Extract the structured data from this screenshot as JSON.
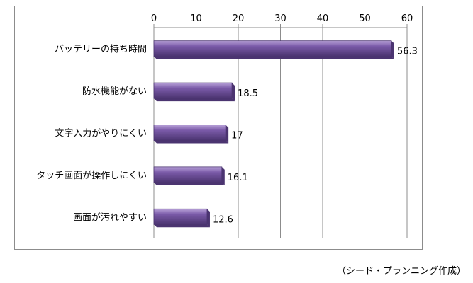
{
  "chart_data": {
    "type": "bar",
    "orientation": "horizontal",
    "categories": [
      "バッテリーの持ち時間",
      "防水機能がない",
      "文字入力がやりにくい",
      "タッチ画面が操作しにくい",
      "画面が汚れやすい"
    ],
    "values": [
      56.3,
      18.5,
      17,
      16.1,
      12.6
    ],
    "value_labels": [
      "56.3",
      "18.5",
      "17",
      "16.1",
      "12.6"
    ],
    "xlim": [
      0,
      60
    ],
    "x_ticks": [
      0,
      10,
      20,
      30,
      40,
      50,
      60
    ],
    "x_tick_labels": [
      "0",
      "10",
      "20",
      "30",
      "40",
      "50",
      "60"
    ],
    "x_axis_position": "top",
    "grid": true,
    "bar_color": "#7a5aa8",
    "bar_highlight": "#b8a2d8",
    "bar_edge": "#4b3470",
    "grid_color": "#8c8c8c"
  },
  "source_note": "（シード・プランニング作成）"
}
